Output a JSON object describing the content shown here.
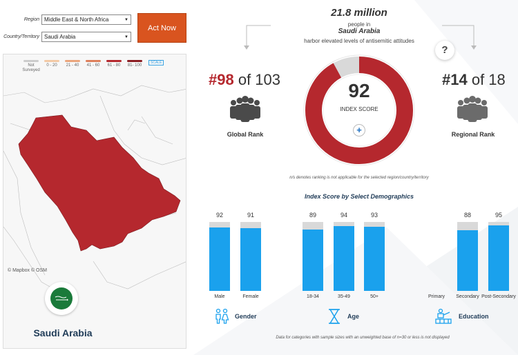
{
  "filters": {
    "region_label": "Region",
    "region_value": "Middle East & North Africa",
    "country_label": "Country/Territory",
    "country_value": "Saudi Arabia",
    "act_button": "Act Now"
  },
  "map": {
    "legend": [
      {
        "label": "Not Surveyed",
        "color": "#cccccc"
      },
      {
        "label": "0 - 20",
        "color": "#f3c9a5"
      },
      {
        "label": "21 - 40",
        "color": "#eba57c"
      },
      {
        "label": "41 - 60",
        "color": "#de7f5b"
      },
      {
        "label": "61 - 80",
        "color": "#b5282e"
      },
      {
        "label": "81- 100",
        "color": "#8c1d22"
      }
    ],
    "scale_label": "SCALE",
    "attribution": "© Mapbox  © OSM",
    "highlight_color": "#b5282e",
    "country_name": "Saudi Arabia",
    "flag_color": "#1a7a3a"
  },
  "header": {
    "population": "21.8 million",
    "line1": "people in",
    "country": "Saudi Arabia",
    "line2": "harbor elevated levels of antisemitic attitudes"
  },
  "global_rank": {
    "rank": "#98",
    "of_text": "of 103",
    "label": "Global Rank"
  },
  "regional_rank": {
    "rank": "#14",
    "of_text": "of 18",
    "label": "Regional Rank"
  },
  "index_score": {
    "value": "92",
    "label": "INDEX SCORE",
    "fraction": 0.92,
    "color": "#b5282e"
  },
  "question_icon": "?",
  "plus_icon": "+",
  "na_note": "n/s denotes ranking is not applicable for the selected region/country/territory",
  "demographics": {
    "title": "Index Score by Select Demographics",
    "bar_color": "#1aa1ed",
    "groups": [
      {
        "label": "Gender",
        "icon": "gender-icon",
        "bars": [
          {
            "category": "Male",
            "value": "92",
            "fraction": 0.92
          },
          {
            "category": "Female",
            "value": "91",
            "fraction": 0.91
          }
        ]
      },
      {
        "label": "Age",
        "icon": "hourglass-icon",
        "bars": [
          {
            "category": "18-34",
            "value": "89",
            "fraction": 0.89
          },
          {
            "category": "35-49",
            "value": "94",
            "fraction": 0.94
          },
          {
            "category": "50+",
            "value": "93",
            "fraction": 0.93
          }
        ]
      },
      {
        "label": "Education",
        "icon": "education-icon",
        "bars": [
          {
            "category": "Primary",
            "value": "",
            "fraction": 0
          },
          {
            "category": "Secondary",
            "value": "88",
            "fraction": 0.88
          },
          {
            "category": "Post-Secondary",
            "value": "95",
            "fraction": 0.95
          }
        ]
      }
    ]
  },
  "footer_note": "Data for categories with sample sizes with an unweighted base of n=30 or less is not displayed"
}
